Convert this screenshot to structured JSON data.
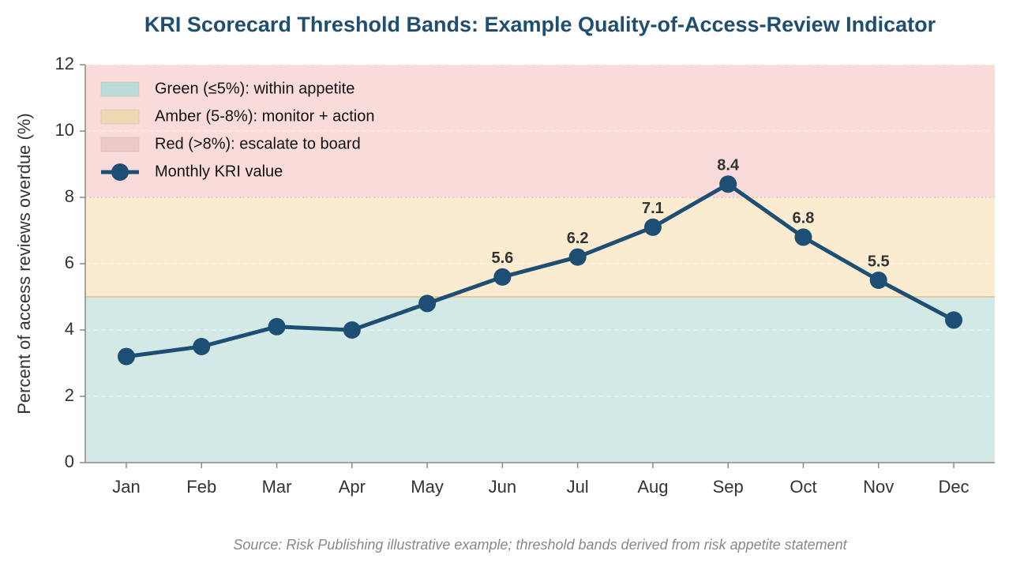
{
  "chart_data": {
    "type": "line",
    "title": "KRI Scorecard Threshold Bands: Example Quality-of-Access-Review Indicator",
    "y_label": "Percent of access reviews overdue (%)",
    "source": "Source: Risk Publishing illustrative example; threshold bands derived from risk appetite statement",
    "categories": [
      "Jan",
      "Feb",
      "Mar",
      "Apr",
      "May",
      "Jun",
      "Jul",
      "Aug",
      "Sep",
      "Oct",
      "Nov",
      "Dec"
    ],
    "series": [
      {
        "name": "Monthly KRI value",
        "color": "#1d4e74",
        "values": [
          3.2,
          3.5,
          4.1,
          4.0,
          4.8,
          5.6,
          6.2,
          7.1,
          8.4,
          6.8,
          5.5,
          4.3
        ],
        "value_labels": [
          null,
          null,
          null,
          null,
          null,
          "5.6",
          "6.2",
          "7.1",
          "8.4",
          "6.8",
          "5.5",
          null
        ]
      }
    ],
    "bands": [
      {
        "name": "Green (≤5%): within appetite",
        "color": "#d3e9e6",
        "range": [
          0,
          5
        ]
      },
      {
        "name": "Amber (5-8%): monitor + action",
        "color": "#fbebd0",
        "range": [
          5,
          8
        ]
      },
      {
        "name": "Red (>8%): escalate to board",
        "color": "#f9dcd9",
        "range": [
          8,
          12
        ]
      }
    ],
    "ylim": [
      0,
      12
    ],
    "yticks": [
      0,
      2,
      4,
      6,
      8,
      10,
      12
    ],
    "grid": true,
    "legend": "upper-left"
  }
}
